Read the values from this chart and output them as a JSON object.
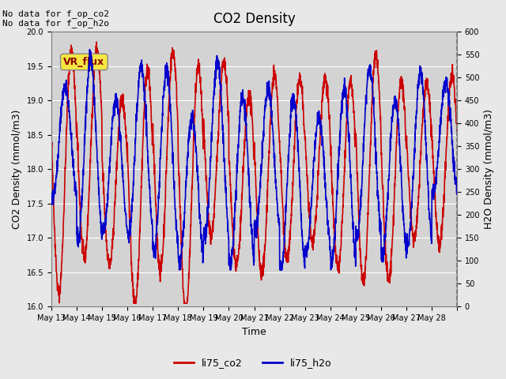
{
  "title": "CO2 Density",
  "xlabel": "Time",
  "ylabel_left": "CO2 Density (mmol/m3)",
  "ylabel_right": "H2O Density (mmol/m3)",
  "ylim_left": [
    16.0,
    20.0
  ],
  "ylim_right": [
    0,
    600
  ],
  "yticks_left": [
    16.0,
    16.5,
    17.0,
    17.5,
    18.0,
    18.5,
    19.0,
    19.5,
    20.0
  ],
  "yticks_right": [
    0,
    50,
    100,
    150,
    200,
    250,
    300,
    350,
    400,
    450,
    500,
    550,
    600
  ],
  "xtick_positions": [
    0,
    1,
    2,
    3,
    4,
    5,
    6,
    7,
    8,
    9,
    10,
    11,
    12,
    13,
    14,
    15,
    16
  ],
  "xtick_labels": [
    "May 13",
    "May 14",
    "May 15",
    "May 16",
    "May 17",
    "May 18",
    "May 19",
    "May 20",
    "May 21",
    "May 22",
    "May 23",
    "May 24",
    "May 25",
    "May 26",
    "May 27",
    "May 28",
    ""
  ],
  "annotation_text": "No data for f_op_co2\nNo data for f_op_h2o",
  "legend_box_text": "VR_flux",
  "legend_entries": [
    "li75_co2",
    "li75_h2o"
  ],
  "legend_colors": [
    "#cc0000",
    "#0000cc"
  ],
  "co2_color": "#cc0000",
  "h2o_color": "#0000cc",
  "background_color": "#e8e8e8",
  "plot_bg_color": "#d3d3d3",
  "linewidth": 1.2,
  "num_days": 16,
  "points_per_day": 144
}
